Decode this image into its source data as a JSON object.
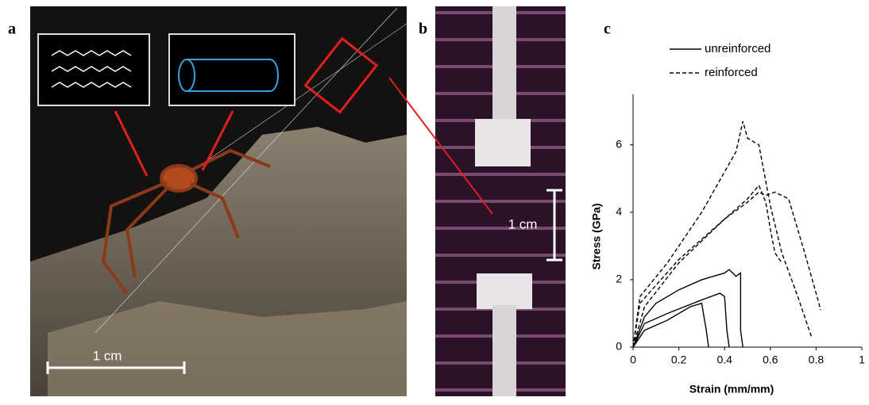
{
  "panels": {
    "a": {
      "label": "a",
      "scale_bar": "1 cm"
    },
    "b": {
      "label": "b",
      "scale_bar": "1 cm"
    }
  },
  "chart_data": {
    "type": "line",
    "label": "c",
    "x_label": "Strain (mm/mm)",
    "y_label": "Stress (GPa)",
    "xlim": [
      0,
      1
    ],
    "xticks": [
      0,
      0.2,
      0.4,
      0.6,
      0.8,
      1
    ],
    "ylim": [
      0,
      7.5
    ],
    "yticks": [
      0,
      2,
      4,
      6
    ],
    "series": [
      {
        "name": "unreinforced",
        "color": "#000000",
        "dash": false,
        "curves": [
          {
            "x": [
              0,
              0.05,
              0.1,
              0.2,
              0.3,
              0.35,
              0.4,
              0.42,
              0.45,
              0.47,
              0.47,
              0.48
            ],
            "y": [
              0,
              0.9,
              1.3,
              1.7,
              2.0,
              2.1,
              2.2,
              2.3,
              2.1,
              2.2,
              0.5,
              0
            ]
          },
          {
            "x": [
              0,
              0.05,
              0.15,
              0.3,
              0.38,
              0.4,
              0.41,
              0.42
            ],
            "y": [
              0,
              0.7,
              1.0,
              1.4,
              1.6,
              1.5,
              0.5,
              0
            ]
          },
          {
            "x": [
              0,
              0.05,
              0.15,
              0.25,
              0.3,
              0.32,
              0.33
            ],
            "y": [
              0,
              0.5,
              0.8,
              1.2,
              1.3,
              0.5,
              0
            ]
          }
        ]
      },
      {
        "name": "reinforced",
        "color": "#000000",
        "dash": true,
        "curves": [
          {
            "x": [
              0,
              0.03,
              0.15,
              0.3,
              0.45,
              0.48,
              0.5,
              0.55,
              0.6,
              0.65,
              0.72,
              0.78
            ],
            "y": [
              0,
              1.5,
              2.5,
              4.0,
              5.8,
              6.7,
              6.2,
              6.0,
              4.2,
              2.8,
              1.5,
              0.3
            ]
          },
          {
            "x": [
              0,
              0.03,
              0.2,
              0.4,
              0.5,
              0.55,
              0.58,
              0.62,
              0.65,
              0.68,
              0.75,
              0.8,
              0.82
            ],
            "y": [
              0,
              1.3,
              2.6,
              3.8,
              4.3,
              4.6,
              4.5,
              4.6,
              4.5,
              4.4,
              2.8,
              1.6,
              1.1
            ]
          },
          {
            "x": [
              0,
              0.05,
              0.2,
              0.4,
              0.5,
              0.55,
              0.58,
              0.6,
              0.62,
              0.65
            ],
            "y": [
              0,
              1.2,
              2.5,
              3.8,
              4.4,
              4.8,
              4.3,
              3.5,
              2.8,
              2.5
            ]
          }
        ]
      }
    ]
  }
}
